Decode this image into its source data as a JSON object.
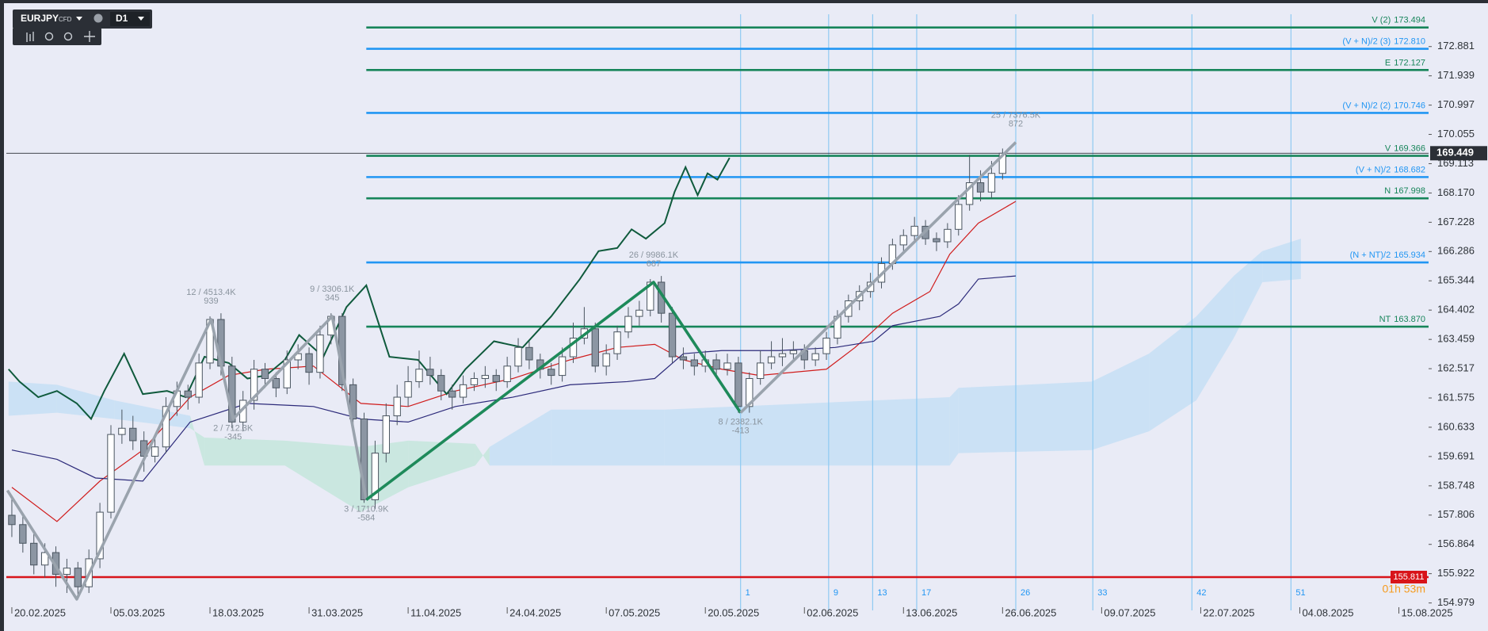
{
  "toolbar": {
    "symbol": "EURJPY",
    "instrument_type": "CFD",
    "timeframe": "D1"
  },
  "chart_data": {
    "type": "candlestick",
    "xlim": [
      -0.5,
      128.7
    ],
    "ylim": [
      154.74,
      173.92
    ],
    "xticks": [
      {
        "value": 0,
        "label": "20.02.2025"
      },
      {
        "value": 9,
        "label": "05.03.2025"
      },
      {
        "value": 18,
        "label": "18.03.2025"
      },
      {
        "value": 27,
        "label": "31.03.2025"
      },
      {
        "value": 36,
        "label": "11.04.2025"
      },
      {
        "value": 45,
        "label": "24.04.2025"
      },
      {
        "value": 54,
        "label": "07.05.2025"
      },
      {
        "value": 63,
        "label": "20.05.2025"
      },
      {
        "value": 72,
        "label": "02.06.2025"
      },
      {
        "value": 81,
        "label": "13.06.2025"
      },
      {
        "value": 90,
        "label": "26.06.2025"
      },
      {
        "value": 99,
        "label": "09.07.2025"
      },
      {
        "value": 108,
        "label": "22.07.2025"
      },
      {
        "value": 117,
        "label": "04.08.2025"
      },
      {
        "value": 126,
        "label": "15.08.2025"
      }
    ],
    "yticks": [
      154.979,
      155.922,
      156.864,
      157.806,
      158.748,
      159.691,
      160.633,
      161.575,
      162.517,
      163.459,
      164.402,
      165.344,
      166.286,
      167.228,
      {
        "value": 168.17,
        "label": "168.170"
      },
      169.113,
      170.055,
      170.997,
      171.939,
      172.881
    ],
    "candle_colors": {
      "up": "#ffffff",
      "down": "#8c96a3",
      "outline": "#4a5560"
    },
    "ohlc": [
      [
        157.8,
        158.4,
        157.1,
        157.5
      ],
      [
        157.5,
        157.8,
        156.6,
        156.9
      ],
      [
        156.9,
        157.2,
        155.9,
        156.2
      ],
      [
        156.2,
        156.9,
        155.8,
        156.6
      ],
      [
        156.6,
        156.8,
        155.5,
        155.9
      ],
      [
        155.9,
        156.4,
        155.3,
        156.1
      ],
      [
        156.1,
        156.3,
        155.2,
        155.5
      ],
      [
        155.5,
        156.7,
        155.3,
        156.4
      ],
      [
        156.4,
        158.2,
        156.1,
        157.9
      ],
      [
        157.9,
        160.7,
        157.7,
        160.4
      ],
      [
        160.4,
        161.2,
        160.1,
        160.6
      ],
      [
        160.6,
        161.0,
        159.9,
        160.2
      ],
      [
        160.2,
        160.5,
        159.2,
        159.7
      ],
      [
        159.7,
        160.4,
        159.5,
        160.0
      ],
      [
        160.0,
        161.6,
        159.8,
        161.3
      ],
      [
        161.3,
        162.1,
        161.0,
        161.8
      ],
      [
        161.8,
        162.0,
        161.2,
        161.6
      ],
      [
        161.6,
        163.0,
        161.4,
        162.7
      ],
      [
        162.7,
        164.2,
        162.5,
        164.1
      ],
      [
        164.1,
        164.3,
        162.3,
        162.6
      ],
      [
        162.6,
        162.9,
        160.6,
        160.8
      ],
      [
        160.8,
        161.8,
        160.5,
        161.5
      ],
      [
        161.5,
        162.8,
        161.2,
        162.5
      ],
      [
        162.5,
        162.7,
        161.9,
        162.2
      ],
      [
        162.2,
        162.4,
        161.6,
        161.9
      ],
      [
        161.9,
        163.1,
        161.7,
        162.8
      ],
      [
        162.8,
        163.3,
        162.5,
        163.0
      ],
      [
        163.0,
        163.2,
        162.0,
        162.4
      ],
      [
        162.4,
        163.9,
        162.2,
        163.6
      ],
      [
        163.6,
        164.3,
        163.3,
        164.2
      ],
      [
        164.2,
        164.3,
        161.8,
        162.0
      ],
      [
        162.0,
        162.2,
        160.5,
        160.9
      ],
      [
        160.9,
        161.1,
        158.2,
        158.3
      ],
      [
        158.3,
        160.2,
        158.0,
        159.8
      ],
      [
        159.8,
        161.4,
        159.5,
        161.0
      ],
      [
        161.0,
        162.0,
        160.7,
        161.6
      ],
      [
        161.6,
        162.6,
        161.3,
        162.1
      ],
      [
        162.1,
        163.1,
        161.9,
        162.5
      ],
      [
        162.5,
        162.9,
        162.0,
        162.3
      ],
      [
        162.3,
        162.5,
        161.5,
        161.8
      ],
      [
        161.8,
        162.0,
        161.2,
        161.6
      ],
      [
        161.6,
        162.3,
        161.4,
        162.0
      ],
      [
        162.0,
        162.4,
        161.8,
        162.2
      ],
      [
        162.2,
        162.6,
        161.9,
        162.3
      ],
      [
        162.3,
        162.5,
        161.8,
        162.1
      ],
      [
        162.1,
        162.9,
        161.9,
        162.6
      ],
      [
        162.6,
        163.5,
        162.4,
        163.2
      ],
      [
        163.2,
        163.4,
        162.5,
        162.8
      ],
      [
        162.8,
        163.0,
        162.2,
        162.5
      ],
      [
        162.5,
        162.7,
        162.0,
        162.3
      ],
      [
        162.3,
        163.2,
        162.1,
        162.9
      ],
      [
        162.9,
        164.0,
        162.7,
        163.5
      ],
      [
        163.5,
        164.5,
        163.3,
        163.8
      ],
      [
        163.8,
        164.0,
        162.4,
        162.6
      ],
      [
        162.6,
        163.3,
        162.3,
        163.0
      ],
      [
        163.0,
        163.9,
        162.8,
        163.7
      ],
      [
        163.7,
        164.5,
        163.5,
        164.2
      ],
      [
        164.2,
        164.7,
        163.9,
        164.4
      ],
      [
        164.4,
        165.4,
        164.2,
        165.3
      ],
      [
        165.3,
        165.5,
        164.0,
        164.3
      ],
      [
        164.3,
        164.5,
        162.7,
        162.9
      ],
      [
        162.9,
        163.2,
        162.5,
        162.8
      ],
      [
        162.8,
        163.0,
        162.3,
        162.6
      ],
      [
        162.6,
        163.1,
        162.4,
        162.8
      ],
      [
        162.8,
        163.0,
        162.2,
        162.5
      ],
      [
        162.5,
        163.0,
        162.3,
        162.7
      ],
      [
        162.7,
        162.9,
        161.1,
        161.3
      ],
      [
        161.3,
        162.4,
        161.1,
        162.2
      ],
      [
        162.2,
        163.1,
        162.0,
        162.7
      ],
      [
        162.7,
        163.4,
        162.5,
        162.9
      ],
      [
        162.9,
        163.5,
        162.6,
        163.0
      ],
      [
        163.0,
        163.4,
        162.8,
        163.1
      ],
      [
        163.1,
        163.3,
        162.5,
        162.8
      ],
      [
        162.8,
        163.2,
        162.6,
        163.0
      ],
      [
        163.0,
        163.7,
        162.8,
        163.5
      ],
      [
        163.5,
        164.4,
        163.3,
        164.2
      ],
      [
        164.2,
        164.9,
        164.0,
        164.7
      ],
      [
        164.7,
        165.2,
        164.4,
        165.0
      ],
      [
        165.0,
        165.6,
        164.8,
        165.3
      ],
      [
        165.3,
        166.1,
        165.1,
        165.9
      ],
      [
        165.9,
        166.7,
        165.7,
        166.5
      ],
      [
        166.5,
        167.0,
        166.3,
        166.8
      ],
      [
        166.8,
        167.4,
        166.6,
        167.1
      ],
      [
        167.1,
        167.3,
        166.5,
        166.7
      ],
      [
        166.7,
        166.9,
        166.3,
        166.6
      ],
      [
        166.6,
        167.2,
        166.4,
        167.0
      ],
      [
        167.0,
        168.1,
        166.8,
        167.8
      ],
      [
        167.8,
        169.4,
        167.6,
        168.5
      ],
      [
        168.5,
        168.9,
        167.9,
        168.2
      ],
      [
        168.2,
        169.2,
        168.0,
        168.8
      ],
      [
        168.8,
        169.6,
        168.6,
        169.449
      ]
    ],
    "cloud": {
      "x": [
        -0.3,
        4.1,
        9.3,
        16.2,
        17.5,
        24.8,
        31.7,
        36.0,
        42.1,
        43.4,
        49.0,
        59.3,
        85.2,
        86.0,
        98.1,
        103.3,
        107.6,
        111.0,
        113.6,
        117.1
      ],
      "span_a": [
        161.0,
        161.1,
        160.9,
        160.6,
        160.3,
        160.2,
        160.0,
        160.2,
        160.1,
        159.4,
        159.4,
        159.4,
        159.4,
        159.8,
        159.9,
        160.5,
        161.5,
        163.5,
        165.3,
        165.4
      ],
      "span_b": [
        162.1,
        162.0,
        161.5,
        161.0,
        159.4,
        159.4,
        157.9,
        158.7,
        159.4,
        160.0,
        161.2,
        161.2,
        161.6,
        161.9,
        162.1,
        163.0,
        164.2,
        165.5,
        166.3,
        166.7
      ],
      "up_color": "#c4e6dc",
      "down_color": "#c6dff4"
    },
    "lines": [
      {
        "color": "#d01c1c",
        "width": 1.2,
        "x": [
          0,
          4.1,
          8.0,
          11.9,
          16.2,
          19.7,
          23.1,
          27.4,
          31.7,
          36.0,
          40.3,
          45.5,
          50.7,
          55.0,
          58.4,
          61.0,
          64.5,
          67.9,
          74.0,
          76.6,
          80.0,
          83.4,
          85.2,
          87.8,
          91.2
        ],
        "values": [
          158.7,
          157.6,
          158.9,
          159.9,
          161.6,
          162.3,
          162.5,
          162.6,
          161.4,
          161.3,
          161.8,
          162.2,
          162.8,
          163.2,
          163.3,
          162.8,
          162.5,
          162.3,
          162.5,
          163.2,
          164.3,
          165.0,
          166.2,
          167.2,
          167.9
        ]
      },
      {
        "color": "#2c2a7a",
        "width": 1.2,
        "x": [
          0,
          4.1,
          7.6,
          11.9,
          16.2,
          21.4,
          27.4,
          31.7,
          36.0,
          40.3,
          45.5,
          50.7,
          55.9,
          58.4,
          61.0,
          64.5,
          69.7,
          74.8,
          78.3,
          80.0,
          84.3,
          86.0,
          87.8,
          91.2
        ],
        "values": [
          159.9,
          159.6,
          159.0,
          158.9,
          160.8,
          161.4,
          161.3,
          160.9,
          160.8,
          161.3,
          161.6,
          162.0,
          162.1,
          162.2,
          163.0,
          163.1,
          163.1,
          163.2,
          163.4,
          163.9,
          164.2,
          164.6,
          165.4,
          165.5
        ]
      },
      {
        "color": "#0f5a3c",
        "width": 2,
        "x": [
          -0.3,
          0.7,
          2.4,
          4.1,
          5.9,
          7.2,
          8.4,
          10.2,
          11.9,
          14.1,
          15.8,
          17.5,
          19.7,
          21.4,
          23.1,
          24.8,
          26.1,
          28.3,
          30.4,
          32.2,
          34.3,
          36.9,
          39.5,
          41.2,
          43.8,
          46.4,
          49.0,
          51.6,
          53.3,
          55.0,
          56.3,
          57.6,
          59.3,
          60.2,
          61.2,
          62.3,
          63.2,
          64.1,
          65.2
        ],
        "values": [
          162.5,
          162.1,
          161.6,
          161.8,
          161.4,
          160.9,
          161.8,
          163.0,
          161.7,
          161.8,
          161.6,
          162.9,
          162.7,
          162.2,
          162.3,
          162.8,
          163.6,
          162.9,
          164.5,
          165.2,
          162.9,
          162.8,
          161.7,
          162.5,
          163.4,
          163.2,
          164.2,
          165.4,
          166.3,
          166.4,
          167.0,
          166.7,
          167.2,
          168.2,
          169.0,
          168.1,
          168.8,
          168.6,
          169.3
        ]
      }
    ],
    "waves": [
      {
        "color": "#9aa3ad",
        "x": [
          -0.4,
          5.9,
          18.1,
          20.1,
          29.1,
          32.2
        ],
        "values": [
          158.6,
          155.1,
          164.1,
          160.9,
          164.2,
          158.3
        ],
        "labels": [
          null,
          null,
          "12 / 4513.4K",
          "2 / 712.3K",
          "9 / 3306.1K",
          "3 / 1710.9K"
        ],
        "sublabels": [
          null,
          null,
          939,
          -345,
          345,
          -584
        ]
      },
      {
        "color": "#1e8a5a",
        "x": [
          32.2,
          58.3,
          66.2
        ],
        "values": [
          158.3,
          165.3,
          161.1
        ],
        "labels": [
          null,
          "26 / 9986.1K",
          "8 / 2382.1K"
        ],
        "sublabels": [
          null,
          687,
          -413
        ]
      },
      {
        "color": "#9aa3ad",
        "x": [
          66.2,
          91.2
        ],
        "values": [
          161.1,
          169.8
        ],
        "labels": [
          null,
          "25 / 7376.5K"
        ],
        "sublabels": [
          null,
          872
        ]
      }
    ],
    "levels": [
      {
        "name": "V (2)",
        "value": 173.494,
        "color": "#17855a"
      },
      {
        "name": "(V + N)/2 (3)",
        "value": 172.81,
        "value_label": "172.810",
        "color": "#2196f3"
      },
      {
        "name": "E",
        "value": 172.127,
        "color": "#17855a"
      },
      {
        "name": "(V + N)/2 (2)",
        "value": 170.746,
        "color": "#2196f3"
      },
      {
        "name": "V",
        "value": 169.366,
        "color": "#17855a"
      },
      {
        "name": "(V + N)/2",
        "value": 168.682,
        "color": "#2196f3"
      },
      {
        "name": "N",
        "value": 167.998,
        "color": "#17855a"
      },
      {
        "name": "(N + NT)/2",
        "value": 165.934,
        "color": "#2196f3"
      },
      {
        "name": "NT",
        "value": 163.87,
        "value_label": "163.870",
        "color": "#17855a"
      }
    ],
    "time_cycles": {
      "counts": [
        1,
        9,
        13,
        17,
        26,
        33,
        42,
        51
      ],
      "color": "#8fcaf2"
    },
    "last_price": {
      "value": 169.449,
      "color": "#2b2f36"
    },
    "stop_level": {
      "value": 155.811,
      "color": "#d8141a"
    },
    "countdown": "01h 53m"
  }
}
